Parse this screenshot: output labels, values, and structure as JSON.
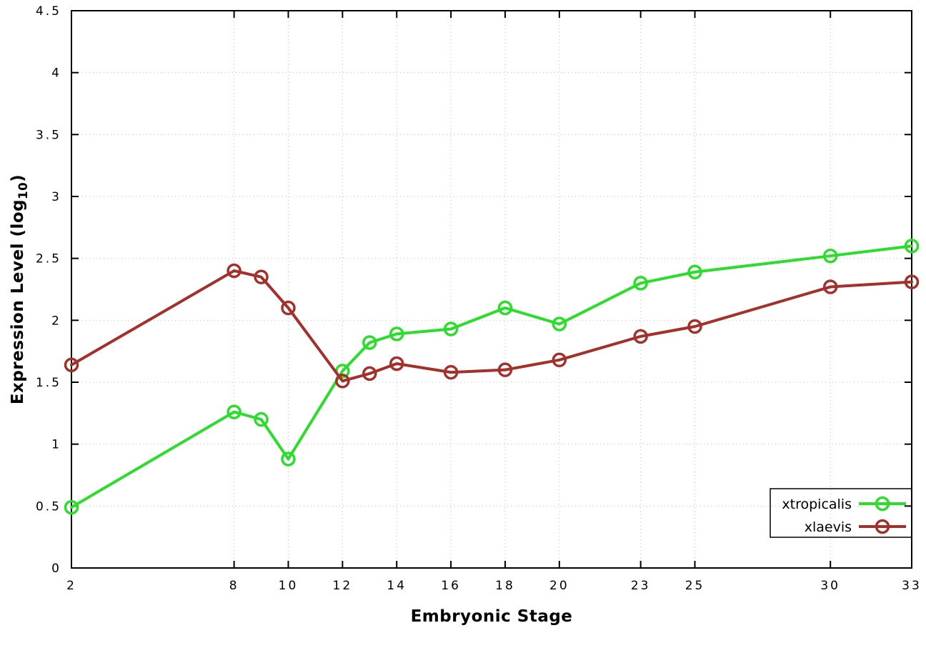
{
  "chart_data": {
    "type": "line",
    "title": "",
    "xlabel": "Embryonic Stage",
    "ylabel_text": "Expression Level (log",
    "ylabel_sub": "10",
    "ylabel_close": ")",
    "xlim": [
      2,
      33
    ],
    "ylim": [
      0,
      4.5
    ],
    "grid": true,
    "grid_color": "#bcbcbc",
    "axis_color": "#000000",
    "background_color": "#ffffff",
    "legend_position": "bottom-right",
    "x_ticks": [
      2,
      8,
      10,
      12,
      14,
      16,
      18,
      20,
      23,
      25,
      30,
      33
    ],
    "x_tick_labels": [
      "2",
      "8",
      "10",
      "12",
      "14",
      "16",
      "18",
      "20",
      "23",
      "25",
      "30",
      "33"
    ],
    "y_ticks": [
      0,
      0.5,
      1,
      1.5,
      2,
      2.5,
      3,
      3.5,
      4,
      4.5
    ],
    "y_tick_labels": [
      "0",
      "0.5",
      "1",
      "1.5",
      "2",
      "2.5",
      "3",
      "3.5",
      "4",
      "4.5"
    ],
    "x": [
      2,
      8,
      9,
      10,
      12,
      13,
      14,
      16,
      18,
      20,
      23,
      25,
      30,
      33
    ],
    "series": [
      {
        "name": "xtropicalis",
        "color": "#2cdd2c",
        "values": [
          0.49,
          1.26,
          1.2,
          0.88,
          1.59,
          1.82,
          1.89,
          1.93,
          2.1,
          1.97,
          2.3,
          2.39,
          2.52,
          2.6
        ]
      },
      {
        "name": "xlaevis",
        "color": "#a3302a",
        "values": [
          1.64,
          2.4,
          2.35,
          2.1,
          1.51,
          1.57,
          1.65,
          1.58,
          1.6,
          1.68,
          1.87,
          1.95,
          2.27,
          2.31
        ]
      }
    ]
  }
}
